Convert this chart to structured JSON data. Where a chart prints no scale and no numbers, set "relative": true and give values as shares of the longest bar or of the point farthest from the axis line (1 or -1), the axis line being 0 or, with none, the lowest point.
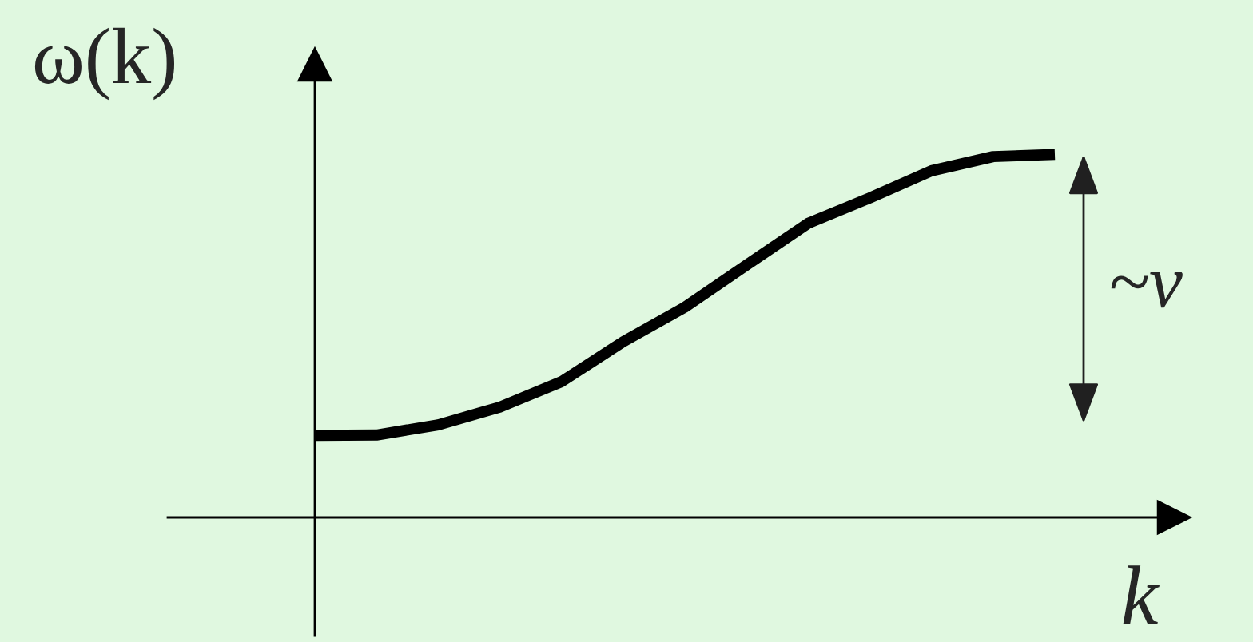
{
  "chart_data": {
    "type": "line",
    "relative": true,
    "xlabel": "k",
    "ylabel": "ω(k)",
    "categories": [
      null,
      null,
      null,
      null,
      null,
      null,
      null,
      null,
      null,
      null,
      null,
      null,
      null
    ],
    "series": [
      {
        "color": "#000000",
        "values": [
          0.226,
          0.227,
          0.255,
          0.304,
          0.374,
          0.484,
          0.579,
          0.695,
          0.81,
          0.88,
          0.955,
          0.994,
          1
        ]
      }
    ],
    "annotations": [
      "~v"
    ],
    "marker": "none",
    "line_style": "solid"
  }
}
